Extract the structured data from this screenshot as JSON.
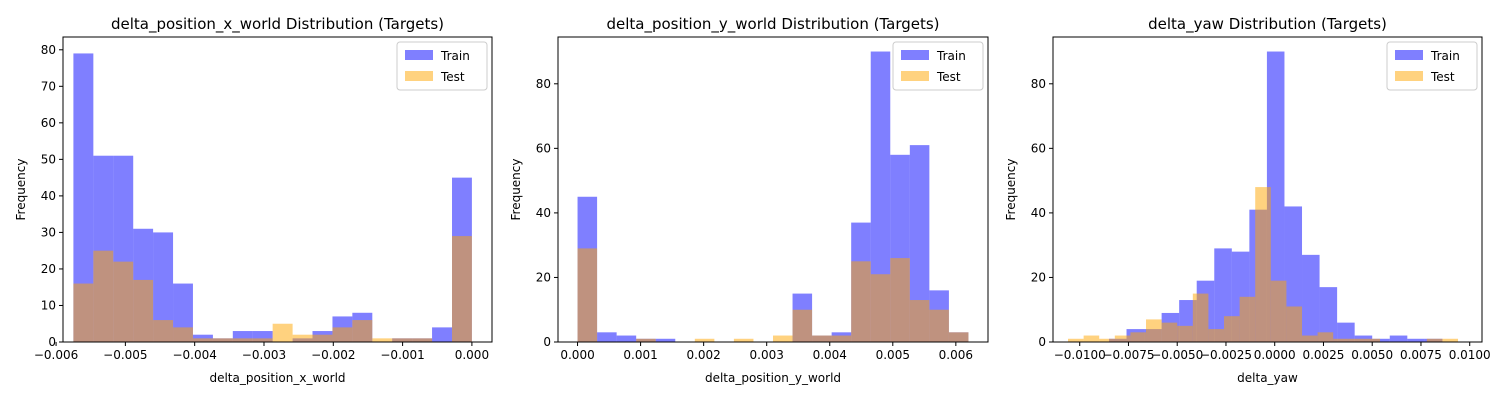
{
  "chart_data": [
    {
      "type": "histogram",
      "title": "delta_position_x_world Distribution (Targets)",
      "xlabel": "delta_position_x_world",
      "ylabel": "Frequency",
      "xlim": [
        -0.0059,
        0.00029
      ],
      "ylim": [
        0,
        83.5
      ],
      "xticks": [
        -0.006,
        -0.005,
        -0.004,
        -0.003,
        -0.002,
        -0.001,
        0.0
      ],
      "xtick_labels": [
        "−0.006",
        "−0.005",
        "−0.004",
        "−0.003",
        "−0.002",
        "−0.001",
        "0.000"
      ],
      "yticks": [
        0,
        10,
        20,
        30,
        40,
        50,
        60,
        70,
        80
      ],
      "ytick_labels": [
        "0",
        "10",
        "20",
        "30",
        "40",
        "50",
        "60",
        "70",
        "80"
      ],
      "legend": "top-right",
      "series": [
        {
          "name": "Train",
          "color": "#0000ff",
          "opacity": 0.5,
          "bin_edges": [
            -0.00575,
            -0.005462,
            -0.005175,
            -0.004887,
            -0.0046,
            -0.004312,
            -0.004025,
            -0.003737,
            -0.00345,
            -0.003162,
            -0.002875,
            -0.002587,
            -0.0023,
            -0.002012,
            -0.001725,
            -0.001437,
            -0.00115,
            -0.000862,
            -0.000575,
            -0.000287,
            0.0
          ],
          "counts": [
            79,
            51,
            51,
            31,
            30,
            16,
            2,
            1,
            3,
            3,
            0,
            1,
            3,
            7,
            8,
            0,
            1,
            1,
            4,
            45
          ]
        },
        {
          "name": "Test",
          "color": "#ffa500",
          "opacity": 0.5,
          "bin_edges": [
            -0.00575,
            -0.005462,
            -0.005175,
            -0.004887,
            -0.0046,
            -0.004312,
            -0.004025,
            -0.003737,
            -0.00345,
            -0.003162,
            -0.002875,
            -0.002587,
            -0.0023,
            -0.002012,
            -0.001725,
            -0.001437,
            -0.00115,
            -0.000862,
            -0.000575,
            -0.000287,
            0.0
          ],
          "counts": [
            16,
            25,
            22,
            17,
            6,
            4,
            1,
            1,
            1,
            1,
            5,
            2,
            2,
            4,
            6,
            1,
            1,
            1,
            0,
            29
          ]
        }
      ]
    },
    {
      "type": "histogram",
      "title": "delta_position_y_world Distribution (Targets)",
      "xlabel": "delta_position_y_world",
      "ylabel": "Frequency",
      "xlim": [
        -0.00031,
        0.00651
      ],
      "ylim": [
        0,
        94.5
      ],
      "xticks": [
        0.0,
        0.001,
        0.002,
        0.003,
        0.004,
        0.005,
        0.006
      ],
      "xtick_labels": [
        "0.000",
        "0.001",
        "0.002",
        "0.003",
        "0.004",
        "0.005",
        "0.006"
      ],
      "yticks": [
        0,
        20,
        40,
        60,
        80
      ],
      "ytick_labels": [
        "0",
        "20",
        "40",
        "60",
        "80"
      ],
      "legend": "top-right",
      "series": [
        {
          "name": "Train",
          "color": "#0000ff",
          "opacity": 0.5,
          "bin_edges": [
            0.0,
            0.00031,
            0.00062,
            0.00093,
            0.00124,
            0.00155,
            0.00186,
            0.00217,
            0.00248,
            0.00279,
            0.0031,
            0.00341,
            0.00372,
            0.00403,
            0.00434,
            0.00465,
            0.00496,
            0.00527,
            0.00558,
            0.00589,
            0.0062
          ],
          "counts": [
            45,
            3,
            2,
            1,
            1,
            0,
            0,
            0,
            0,
            0,
            0,
            15,
            2,
            3,
            37,
            90,
            58,
            61,
            16,
            3
          ]
        },
        {
          "name": "Test",
          "color": "#ffa500",
          "opacity": 0.5,
          "bin_edges": [
            0.0,
            0.00031,
            0.00062,
            0.00093,
            0.00124,
            0.00155,
            0.00186,
            0.00217,
            0.00248,
            0.00279,
            0.0031,
            0.00341,
            0.00372,
            0.00403,
            0.00434,
            0.00465,
            0.00496,
            0.00527,
            0.00558,
            0.00589,
            0.0062
          ],
          "counts": [
            29,
            0,
            0,
            1,
            0,
            0,
            1,
            0,
            1,
            0,
            2,
            10,
            2,
            2,
            25,
            21,
            26,
            13,
            10,
            3
          ]
        }
      ]
    },
    {
      "type": "histogram",
      "title": "delta_yaw Distribution (Targets)",
      "xlabel": "delta_yaw",
      "ylabel": "Frequency",
      "xlim": [
        -0.01137,
        0.01063
      ],
      "ylim": [
        0,
        94.5
      ],
      "xticks": [
        -0.01,
        -0.0075,
        -0.005,
        -0.0025,
        0.0,
        0.0025,
        0.005,
        0.0075,
        0.01
      ],
      "xtick_labels": [
        "−0.0100",
        "−0.0075",
        "−0.0050",
        "−0.0025",
        "0.0000",
        "0.0025",
        "0.0050",
        "0.0075",
        "0.0100"
      ],
      "yticks": [
        0,
        20,
        40,
        60,
        80
      ],
      "ytick_labels": [
        "0",
        "20",
        "40",
        "60",
        "80"
      ],
      "legend": "top-right",
      "series": [
        {
          "name": "Train",
          "color": "#0000ff",
          "opacity": 0.5,
          "bin_edges": [
            -0.0085,
            -0.0076,
            -0.0067,
            -0.0058,
            -0.0049,
            -0.004,
            -0.0031,
            -0.0022,
            -0.0013,
            -0.0004,
            0.0005,
            0.0014,
            0.0023,
            0.0032,
            0.0041,
            0.005,
            0.0059,
            0.0068,
            0.0077,
            0.0086
          ],
          "counts": [
            1,
            4,
            4,
            9,
            13,
            19,
            29,
            28,
            41,
            90,
            42,
            27,
            17,
            6,
            2,
            1,
            2,
            1,
            1
          ]
        },
        {
          "name": "Test",
          "color": "#ffa500",
          "opacity": 0.5,
          "bin_edges": [
            -0.0106,
            -0.0098,
            -0.009,
            -0.0082,
            -0.0074,
            -0.0066,
            -0.0058,
            -0.005,
            -0.0042,
            -0.0034,
            -0.0026,
            -0.0018,
            -0.001,
            -0.0002,
            0.0006,
            0.0014,
            0.0022,
            0.003,
            0.0038,
            0.0046,
            0.0054,
            0.0062,
            0.007,
            0.0078,
            0.0086,
            0.0094,
            0.0102
          ],
          "counts": [
            1,
            2,
            1,
            2,
            3,
            7,
            6,
            5,
            15,
            4,
            8,
            14,
            48,
            19,
            11,
            2,
            3,
            1,
            1,
            1,
            0,
            0,
            0,
            1,
            1,
            0
          ]
        }
      ]
    }
  ]
}
